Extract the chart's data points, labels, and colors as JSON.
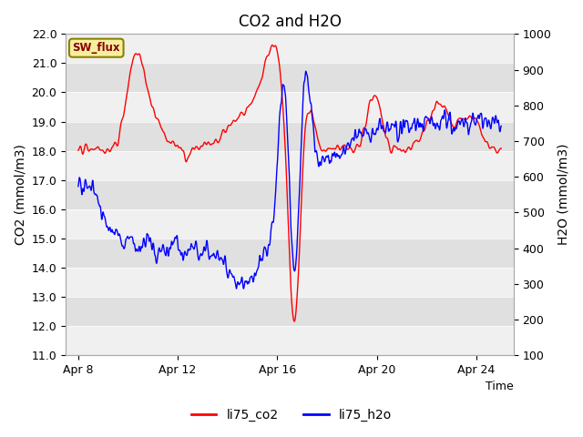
{
  "title": "CO2 and H2O",
  "xlabel": "Time",
  "ylabel_left": "CO2 (mmol/m3)",
  "ylabel_right": "H2O (mmol/m3)",
  "ylim_left": [
    11.0,
    22.0
  ],
  "ylim_right": [
    100,
    1000
  ],
  "yticks_left": [
    11.0,
    12.0,
    13.0,
    14.0,
    15.0,
    16.0,
    17.0,
    18.0,
    19.0,
    20.0,
    21.0,
    22.0
  ],
  "yticks_right": [
    100,
    200,
    300,
    400,
    500,
    600,
    700,
    800,
    900,
    1000
  ],
  "xtick_labels": [
    "Apr 8",
    "Apr 12",
    "Apr 16",
    "Apr 20",
    "Apr 24"
  ],
  "xtick_positions": [
    8,
    12,
    16,
    20,
    24
  ],
  "xmin": 7.5,
  "xmax": 25.5,
  "sw_flux_label": "SW_flux",
  "bg_color": "#e0e0e0",
  "band_color": "#f0f0f0",
  "line_color_co2": "red",
  "line_color_h2o": "blue",
  "line_width": 1.0
}
